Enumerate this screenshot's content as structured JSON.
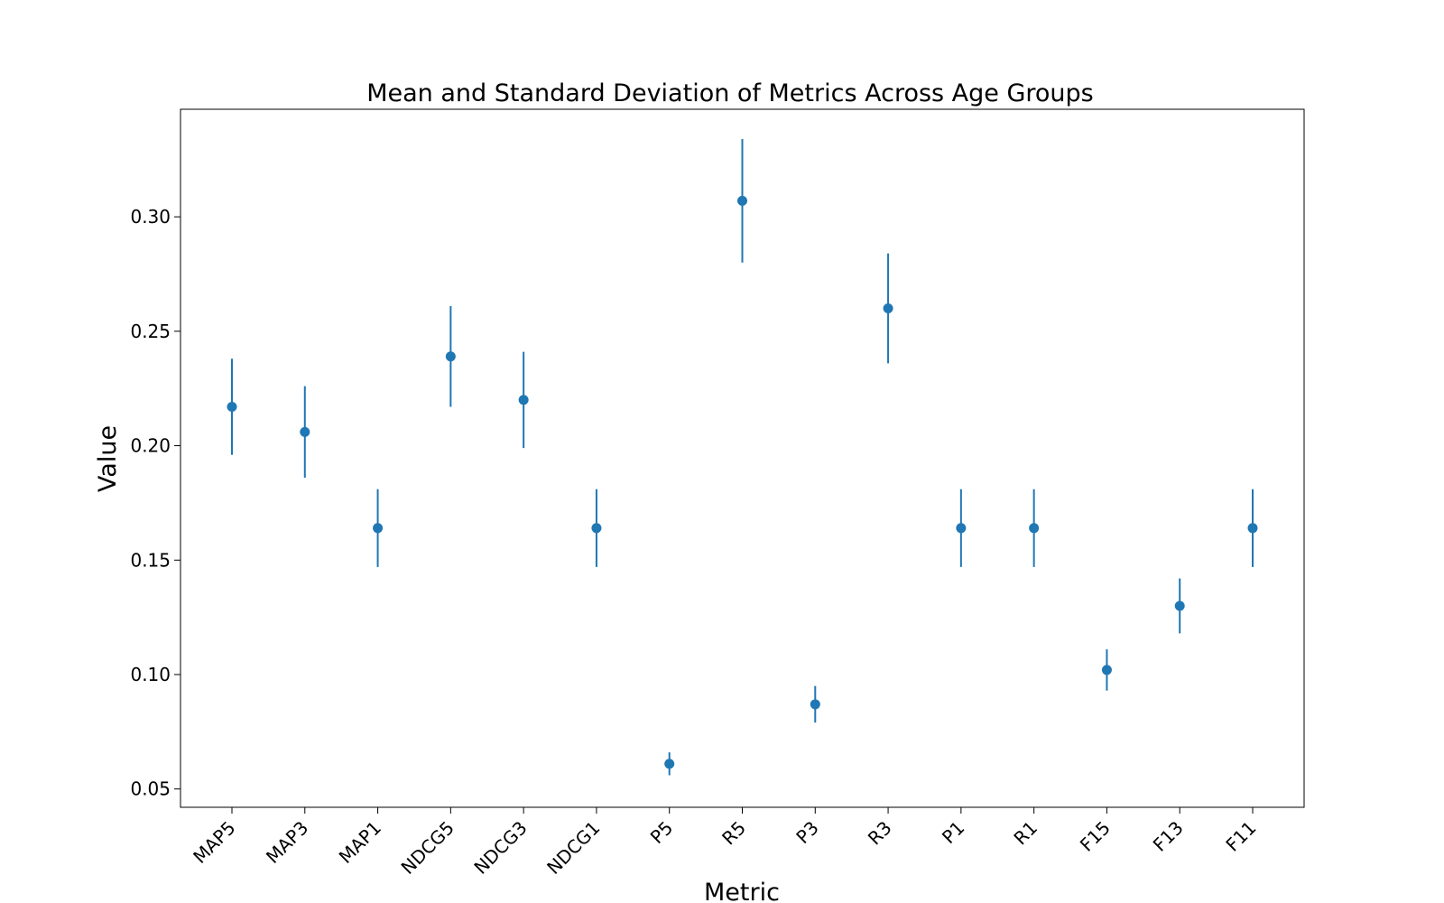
{
  "chart_data": {
    "type": "scatter",
    "title": "Mean and Standard Deviation of Metrics Across Age Groups",
    "xlabel": "Metric",
    "ylabel": "Value",
    "categories": [
      "MAP5",
      "MAP3",
      "MAP1",
      "NDCG5",
      "NDCG3",
      "NDCG1",
      "P5",
      "R5",
      "P3",
      "R3",
      "P1",
      "R1",
      "F15",
      "F13",
      "F11"
    ],
    "series": [
      {
        "means": [
          0.217,
          0.206,
          0.164,
          0.239,
          0.22,
          0.164,
          0.061,
          0.307,
          0.087,
          0.26,
          0.164,
          0.164,
          0.102,
          0.13,
          0.164
        ],
        "std": [
          0.021,
          0.02,
          0.017,
          0.022,
          0.021,
          0.017,
          0.005,
          0.027,
          0.008,
          0.024,
          0.017,
          0.017,
          0.009,
          0.012,
          0.017
        ],
        "color": "#1f77b4"
      }
    ],
    "ylim": [
      0.042,
      0.347
    ],
    "yticks": [
      0.05,
      0.1,
      0.15,
      0.2,
      0.25,
      0.3
    ],
    "ytick_labels": [
      "0.05",
      "0.10",
      "0.15",
      "0.20",
      "0.25",
      "0.30"
    ],
    "grid": false,
    "legend": "none"
  }
}
